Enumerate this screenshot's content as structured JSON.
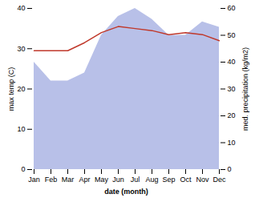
{
  "chart_data": {
    "type": "line",
    "xlabel": "date (month)",
    "ylabel": "max temp (C)",
    "y2label": "med. precipitation (kg/m2)",
    "categories": [
      "Jan",
      "Feb",
      "Mar",
      "Apr",
      "May",
      "Jun",
      "Jul",
      "Aug",
      "Sep",
      "Oct",
      "Nov",
      "Dec"
    ],
    "series": [
      {
        "type": "area",
        "axis": "y2",
        "color": "#b8c0e8",
        "values": [
          40,
          33,
          33,
          36,
          50,
          57,
          60,
          56,
          50,
          50,
          55,
          53
        ]
      },
      {
        "type": "line",
        "color": "#c0392b",
        "values": [
          29.5,
          29.5,
          29.5,
          31.5,
          34.0,
          35.5,
          35.0,
          34.5,
          33.5,
          34.0,
          33.5,
          32.0
        ]
      }
    ],
    "ylim": [
      0,
      40
    ],
    "yticks": [
      0,
      10,
      20,
      30,
      40
    ],
    "y2lim": [
      0,
      60
    ],
    "y2ticks": [
      0,
      10,
      20,
      30,
      40,
      50,
      60
    ],
    "grid": false
  }
}
